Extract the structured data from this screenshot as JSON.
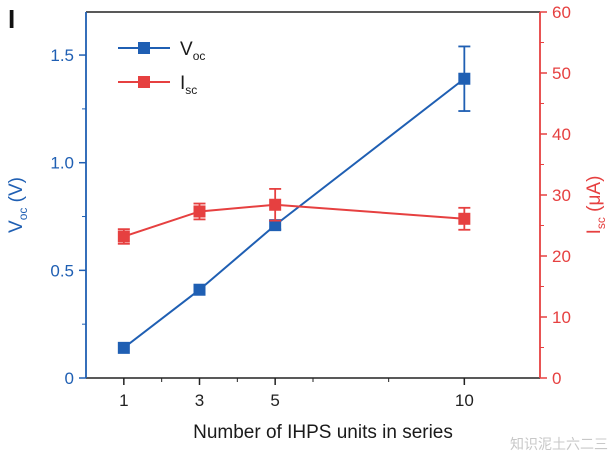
{
  "panel_label": "I",
  "watermark": "知识泥土六二三",
  "colors": {
    "voc": "#1f5fb3",
    "isc": "#e64040",
    "axis": "#222222"
  },
  "chart_data": {
    "type": "line",
    "title": "",
    "xlabel": "Number of IHPS units in series",
    "x": [
      1,
      3,
      5,
      10
    ],
    "x_ticks": [
      1,
      3,
      5,
      10
    ],
    "xlim": [
      0,
      12
    ],
    "grid": false,
    "legend_placement": "top-left",
    "y_left": {
      "label_main": "V",
      "label_sub": "oc",
      "label_unit": "(V)",
      "lim": [
        0,
        1.7
      ],
      "ticks": [
        0,
        0.5,
        1.0,
        1.5
      ],
      "tick_labels": [
        "0",
        "0.5",
        "1.0",
        "1.5"
      ]
    },
    "y_right": {
      "label_main": "I",
      "label_sub": "sc",
      "label_unit": "(μA)",
      "lim": [
        0,
        60
      ],
      "ticks": [
        0,
        10,
        20,
        30,
        40,
        50,
        60
      ],
      "tick_labels": [
        "0",
        "10",
        "20",
        "30",
        "40",
        "50",
        "60"
      ]
    },
    "series": [
      {
        "name": "V",
        "name_sub": "oc",
        "axis": "left",
        "color": "#1f5fb3",
        "values": [
          0.14,
          0.41,
          0.71,
          1.39
        ],
        "errors": [
          0.0,
          0.0,
          0.02,
          0.15
        ]
      },
      {
        "name": "I",
        "name_sub": "sc",
        "axis": "right",
        "color": "#e64040",
        "values": [
          23.2,
          27.3,
          28.4,
          26.1
        ],
        "errors": [
          1.2,
          1.3,
          2.6,
          1.8
        ]
      }
    ]
  }
}
